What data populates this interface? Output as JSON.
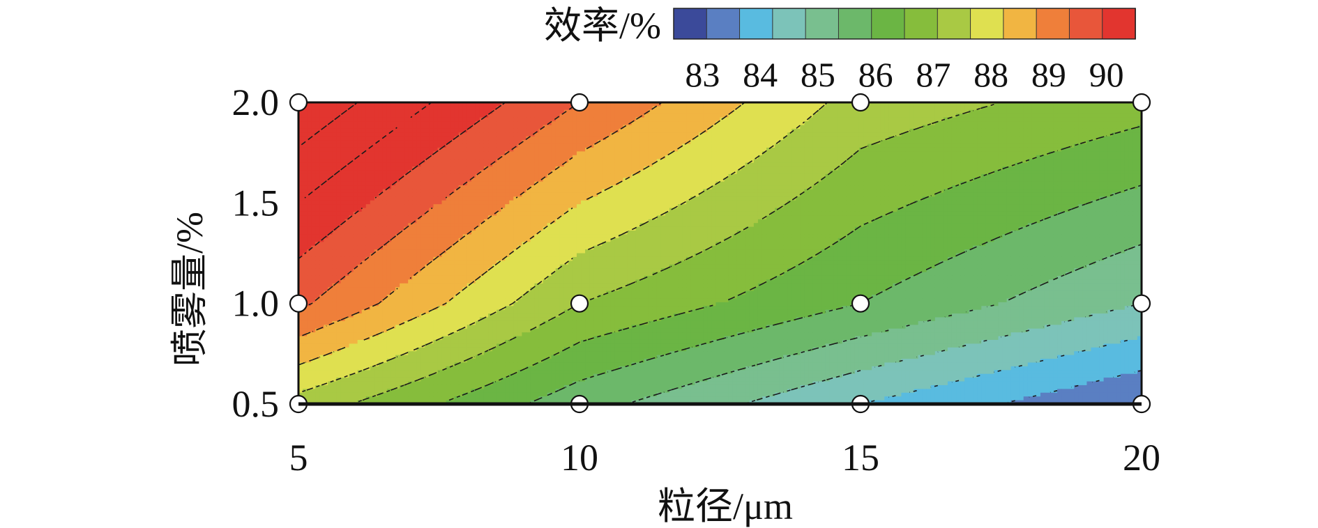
{
  "chart_data": {
    "type": "heatmap",
    "subtype": "filled-contour",
    "title": "",
    "xlabel": "粒径/μm",
    "ylabel": "喷雾量/%",
    "x_ticks": [
      "5",
      "10",
      "15",
      "20"
    ],
    "y_ticks": [
      "0.5",
      "1.0",
      "1.5",
      "2.0"
    ],
    "x": [
      5,
      10,
      15,
      20
    ],
    "y": [
      0.5,
      1.0,
      2.0
    ],
    "xlim": [
      5,
      20
    ],
    "ylim": [
      0.5,
      2.0
    ],
    "z_grid": [
      [
        86.8,
        85.2,
        84.0,
        83.0
      ],
      [
        88.6,
        86.5,
        85.5,
        84.5
      ],
      [
        90.4,
        88.5,
        86.8,
        86.2
      ]
    ],
    "sample_points": [
      {
        "x": 5,
        "y": 2.0
      },
      {
        "x": 10,
        "y": 2.0
      },
      {
        "x": 15,
        "y": 2.0
      },
      {
        "x": 20,
        "y": 2.0
      },
      {
        "x": 5,
        "y": 1.0
      },
      {
        "x": 10,
        "y": 1.0
      },
      {
        "x": 15,
        "y": 1.0
      },
      {
        "x": 20,
        "y": 1.0
      },
      {
        "x": 5,
        "y": 0.5
      },
      {
        "x": 10,
        "y": 0.5
      },
      {
        "x": 15,
        "y": 0.5
      },
      {
        "x": 20,
        "y": 0.5
      }
    ],
    "colorbar": {
      "title": "效率/%",
      "min": 82.5,
      "max": 90.5,
      "step": 0.5,
      "tick_labels": [
        "83",
        "84",
        "85",
        "86",
        "87",
        "88",
        "89",
        "90"
      ],
      "tick_values": [
        83,
        84,
        85,
        86,
        87,
        88,
        89,
        90
      ],
      "placement": "top-right",
      "colors": [
        "#3b4a9a",
        "#5a7fc2",
        "#59bbe0",
        "#7cc3b9",
        "#79bf8f",
        "#6cb86a",
        "#6bb544",
        "#86bd3c",
        "#a9c944",
        "#dfe050",
        "#f1b542",
        "#ef7f3a",
        "#e8563a",
        "#e2352f"
      ]
    },
    "contour_lines": "dashed",
    "grid": false
  }
}
